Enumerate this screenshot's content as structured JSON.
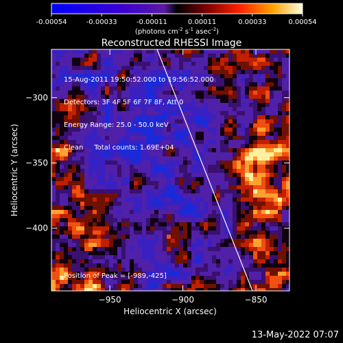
{
  "colorbar": {
    "ticks": [
      "-0.00054",
      "-0.00033",
      "-0.00011",
      "0.00011",
      "0.00033",
      "0.00054"
    ],
    "units_prefix": "(photons cm",
    "units_exp1": "-2",
    "units_mid": " s",
    "units_exp2": "-1",
    "units_mid2": " asec",
    "units_exp3": "-2",
    "units_suffix": ")"
  },
  "plot": {
    "title": "Reconstructed RHESSI Image",
    "xlabel": "Heliocentric X (arcsec)",
    "ylabel": "Heliocentric Y (arcsec)",
    "xticks": [
      "-950",
      "-900",
      "-850"
    ],
    "yticks": [
      "-300",
      "-350",
      "-400"
    ],
    "xlim": [
      -990,
      -827
    ],
    "ylim": [
      -448,
      -263
    ]
  },
  "info": {
    "line1": "15-Aug-2011 19:50:52.000 to 19:56:52.000",
    "line2": "Detectors: 3F 4F 5F 6F 7F 8F, Att 0",
    "line3": "Energy Range: 25.0 - 50.0 keV",
    "line4": "Clean     Total counts: 1.69E+04",
    "peak": "Position of Peak = [-989,-425]"
  },
  "footer": {
    "date": "13-May-2022 07:07"
  }
}
